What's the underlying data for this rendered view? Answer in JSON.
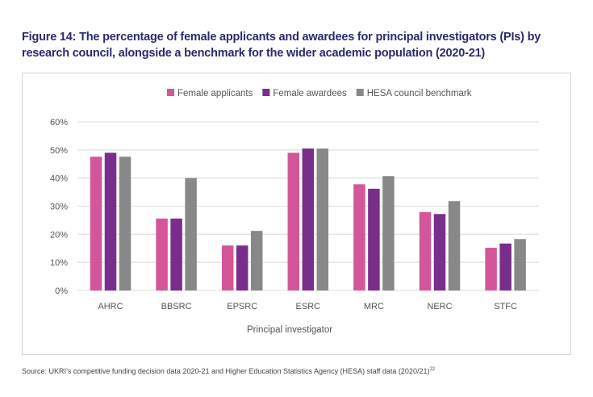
{
  "title": "Figure 14: The percentage of female applicants and awardees for principal investigators (PIs) by research council, alongside a benchmark for the wider academic population (2020-21)",
  "source": {
    "text": "Source: UKRI’s competitive funding decision data 2020-21 and Higher Education Statistics Agency (HESA) staff data (2020/21)",
    "footnote": "22"
  },
  "chart_data": {
    "type": "bar",
    "title": "",
    "xlabel": "Principal investigator",
    "ylabel": "",
    "ylim": [
      0,
      60
    ],
    "yticks": [
      "0%",
      "10%",
      "20%",
      "30%",
      "40%",
      "50%",
      "60%"
    ],
    "grid": true,
    "legend_position": "top",
    "categories": [
      "AHRC",
      "BBSRC",
      "EPSRC",
      "ESRC",
      "MRC",
      "NERC",
      "STFC"
    ],
    "series": [
      {
        "name": "Female applicants",
        "color": "#d4569a",
        "values": [
          47.6,
          25.6,
          16.0,
          49.0,
          37.8,
          27.9,
          15.2
        ]
      },
      {
        "name": "Female awardees",
        "color": "#782e8a",
        "values": [
          49.0,
          25.6,
          16.0,
          50.5,
          36.2,
          27.2,
          16.7
        ]
      },
      {
        "name": "HESA council benchmark",
        "color": "#888888",
        "values": [
          47.6,
          40.0,
          21.2,
          50.5,
          40.7,
          31.8,
          18.3
        ]
      }
    ]
  }
}
